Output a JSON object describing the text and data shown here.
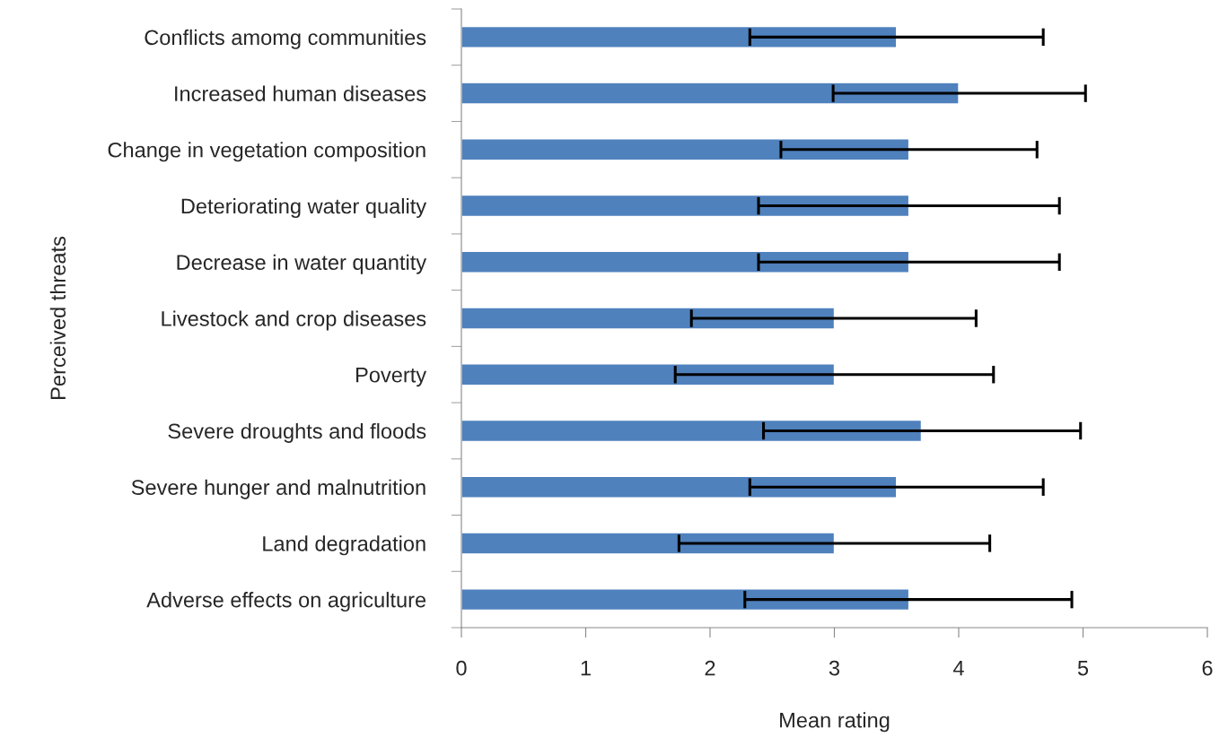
{
  "chart_data": {
    "type": "bar",
    "orientation": "horizontal",
    "xlabel": "Mean rating",
    "ylabel": "Perceived threats",
    "categories": [
      "Conflicts amomg communities",
      "Increased human diseases",
      "Change in vegetation composition",
      "Deteriorating water quality",
      "Decrease in water quantity",
      "Livestock and crop diseases",
      "Poverty",
      "Severe droughts and floods",
      "Severe hunger and malnutrition",
      "Land degradation",
      "Adverse effects on agriculture"
    ],
    "values": [
      3.5,
      4.0,
      3.6,
      3.6,
      3.6,
      3.0,
      3.0,
      3.7,
      3.5,
      3.0,
      3.6
    ],
    "errors": [
      [
        2.32,
        4.68
      ],
      [
        2.99,
        5.02
      ],
      [
        2.57,
        4.63
      ],
      [
        2.39,
        4.81
      ],
      [
        2.39,
        4.81
      ],
      [
        1.85,
        4.14
      ],
      [
        1.72,
        4.28
      ],
      [
        2.43,
        4.98
      ],
      [
        2.32,
        4.68
      ],
      [
        1.75,
        4.25
      ],
      [
        2.28,
        4.91
      ]
    ],
    "color": "#4f81bd",
    "xlim": [
      0,
      6
    ],
    "xticks": [
      0,
      1,
      2,
      3,
      4,
      5,
      6
    ],
    "grid": false,
    "legend": false
  }
}
